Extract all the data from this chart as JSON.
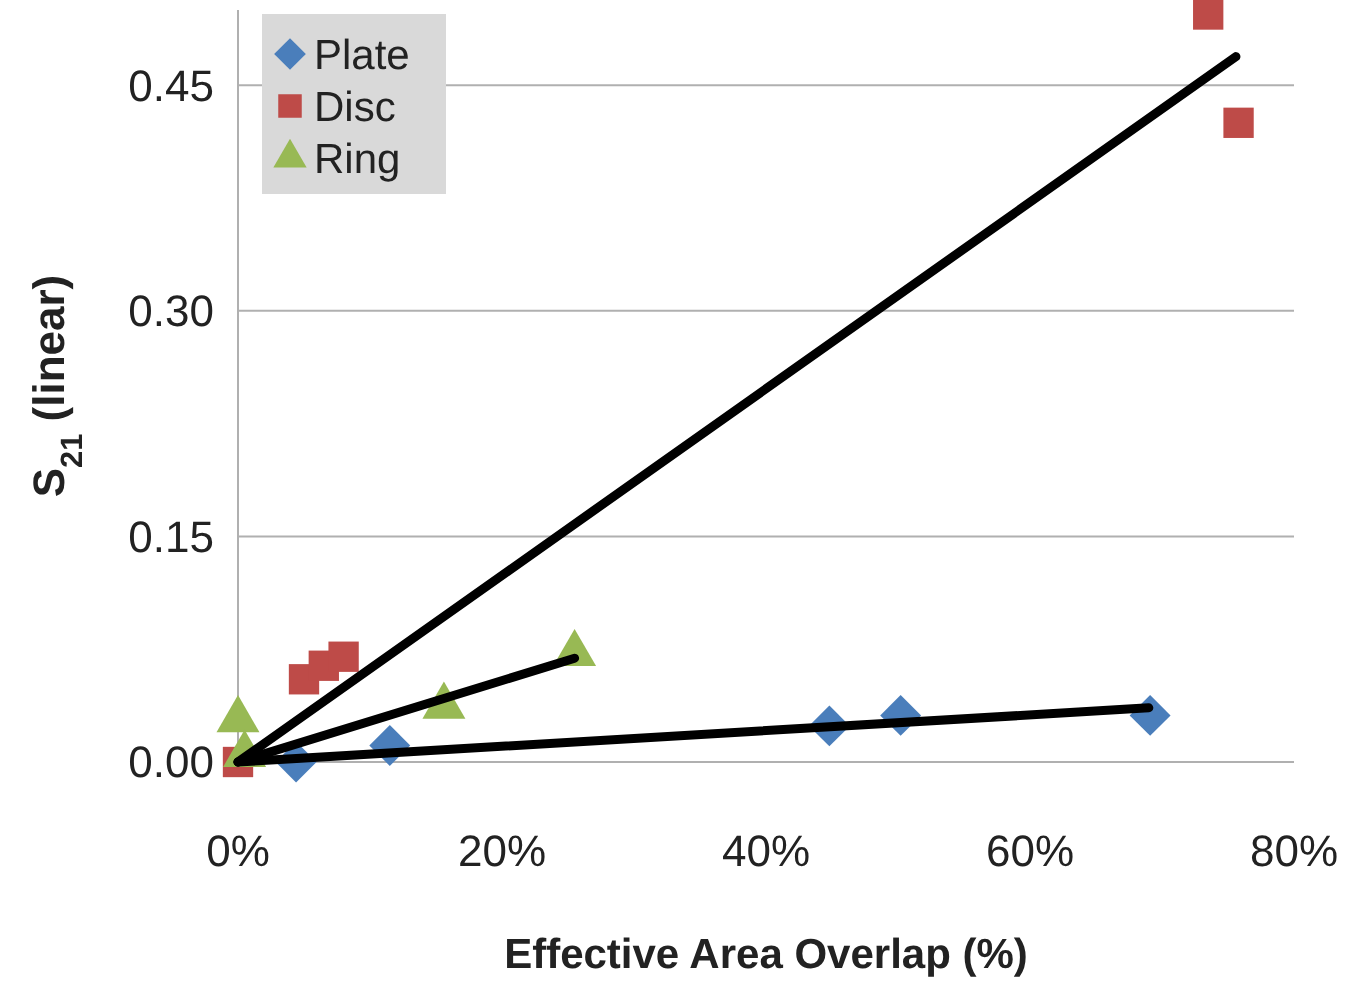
{
  "chart_data": {
    "type": "scatter",
    "xlabel": "Effective Area Overlap (%)",
    "ylabel": "S$_{21}$ (linear)",
    "xlim": [
      0,
      80
    ],
    "xticks": [
      {
        "value": 0,
        "label": "0%"
      },
      {
        "value": 20,
        "label": "20%"
      },
      {
        "value": 40,
        "label": "40%"
      },
      {
        "value": 60,
        "label": "60%"
      },
      {
        "value": 80,
        "label": "80%"
      }
    ],
    "ylim": [
      0,
      0.5
    ],
    "yticks": [
      {
        "value": 0,
        "label": "0.00"
      },
      {
        "value": 0.15,
        "label": "0.15"
      },
      {
        "value": 0.3,
        "label": "0.30"
      },
      {
        "value": 0.45,
        "label": "0.45"
      }
    ],
    "grid": "y",
    "legend": "top left",
    "series": [
      {
        "name": "Plate",
        "color": "#4a7ebb",
        "marker": "diamond",
        "x": [
          4.4,
          11.5,
          44.8,
          50.2,
          69.1
        ],
        "values": [
          0.0,
          0.011,
          0.024,
          0.031,
          0.031
        ]
      },
      {
        "name": "Disc",
        "color": "#be4b48",
        "marker": "square",
        "x": [
          0,
          5.0,
          6.5,
          8.0,
          73.5,
          75.8
        ],
        "values": [
          0.0,
          0.055,
          0.064,
          0.07,
          0.497,
          0.425
        ]
      },
      {
        "name": "Ring",
        "color": "#98b954",
        "marker": "triangle",
        "x": [
          0,
          0.5,
          15.6,
          25.5
        ],
        "values": [
          0.028,
          0.005,
          0.037,
          0.072
        ]
      },
      {
        "type": "line",
        "color": "#000000",
        "x": [
          0,
          69
        ],
        "values": [
          0.0,
          0.036
        ]
      },
      {
        "type": "line",
        "color": "#000000",
        "x": [
          0,
          75.6
        ],
        "values": [
          0.0,
          0.469
        ]
      },
      {
        "type": "line",
        "color": "#000000",
        "x": [
          0,
          25.5
        ],
        "values": [
          0.0,
          0.069
        ]
      }
    ]
  }
}
